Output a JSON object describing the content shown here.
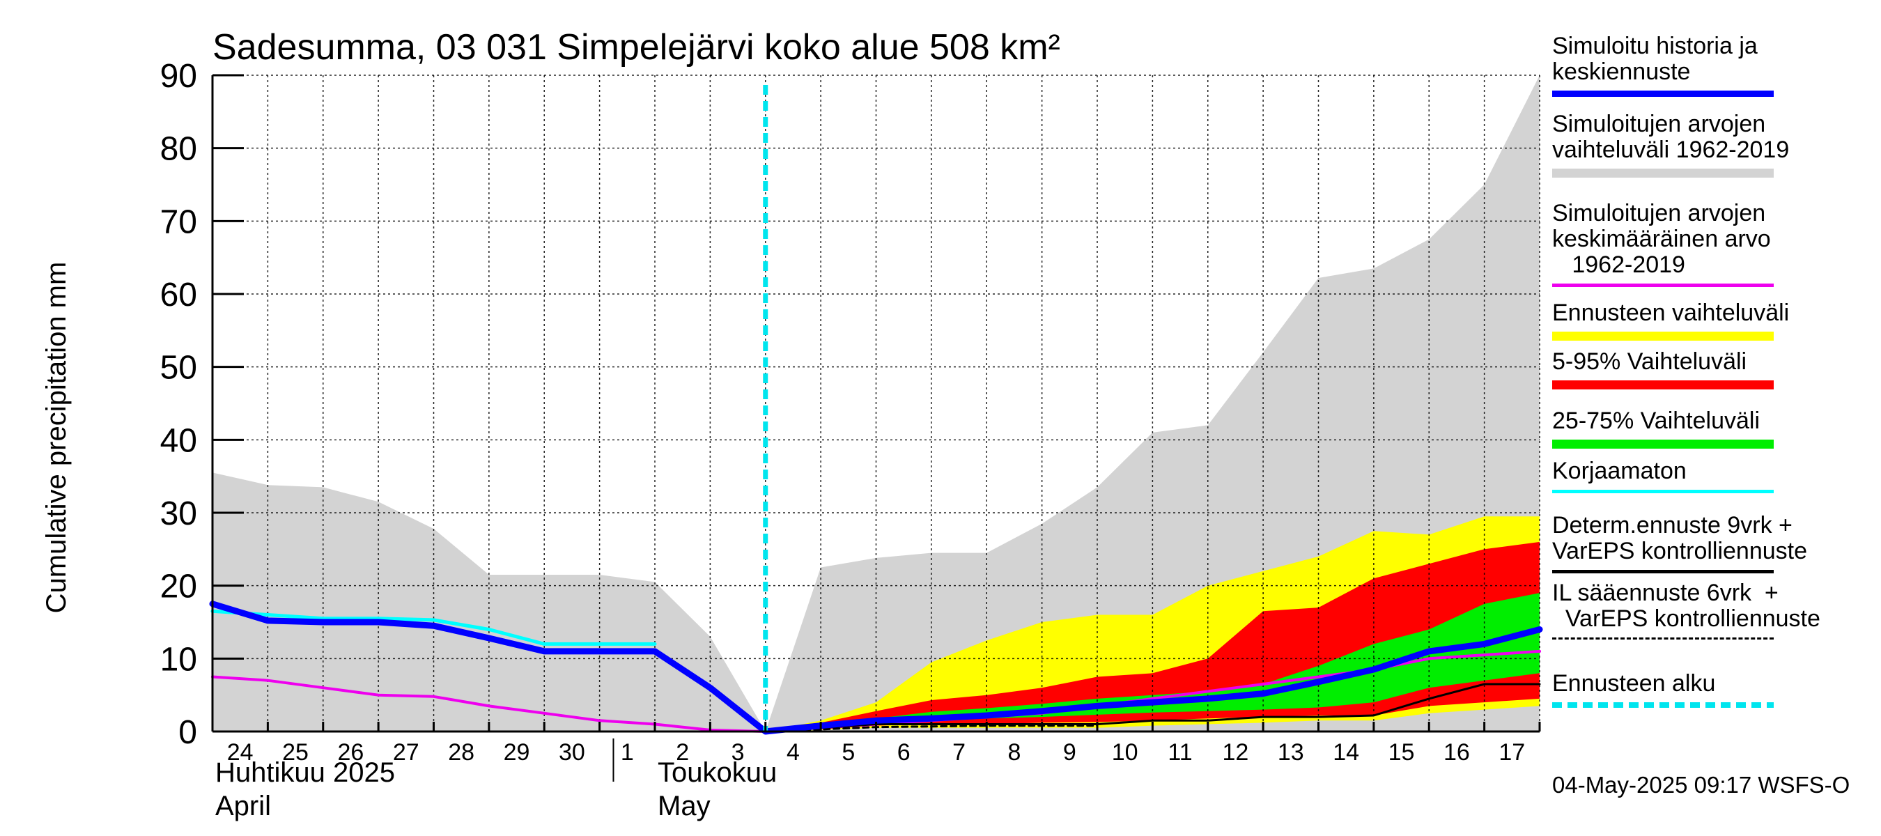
{
  "chart_data": {
    "type": "area",
    "title": "Sadesumma, 03 031 Simpelejärvi koko alue 508 km²",
    "ylabel": "Cumulative precipitation   mm",
    "ylim": [
      0,
      90
    ],
    "yticks": [
      0,
      10,
      20,
      30,
      40,
      50,
      60,
      70,
      80,
      90
    ],
    "grid": true,
    "day_labels": [
      "24",
      "25",
      "26",
      "27",
      "28",
      "29",
      "30",
      "1",
      "2",
      "3",
      "4",
      "5",
      "6",
      "7",
      "8",
      "9",
      "10",
      "11",
      "12",
      "13",
      "14",
      "15",
      "16",
      "17"
    ],
    "month_labels": [
      {
        "fi": "Huhtikuu  2025",
        "en": "April",
        "day_index": 0
      },
      {
        "fi": "Toukokuu",
        "en": "May",
        "day_index": 8
      }
    ],
    "forecast_start_day": 10,
    "history_range": {
      "x": [
        0,
        1,
        2,
        3,
        4,
        5,
        6,
        7,
        8,
        9,
        10,
        11,
        12,
        13,
        14,
        15,
        16,
        17,
        18,
        19,
        20,
        21,
        22,
        23,
        24
      ],
      "high": [
        35.5,
        33.8,
        33.5,
        31.5,
        27.8,
        21.5,
        21.5,
        21.5,
        20.5,
        13.0,
        0,
        22.5,
        23.8,
        24.5,
        24.5,
        28.5,
        33.5,
        41.0,
        42.0,
        52.0,
        62.2,
        63.5,
        67.5,
        75.0,
        90.0
      ],
      "low": [
        0,
        0,
        0,
        0,
        0,
        0,
        0,
        0,
        0,
        0,
        0,
        0,
        0,
        0,
        0,
        0,
        0,
        0,
        0,
        0,
        0,
        0,
        0,
        0,
        0
      ]
    },
    "forecast_bands": [
      {
        "name": "Ennusteen vaihteluväli",
        "color": "#ffff00",
        "x": [
          10,
          11,
          12,
          13,
          14,
          15,
          16,
          17,
          18,
          19,
          20,
          21,
          22,
          23,
          24
        ],
        "high": [
          0,
          1.5,
          4.0,
          9.5,
          12.5,
          15.0,
          16.0,
          16.0,
          20.0,
          22.0,
          24.0,
          27.5,
          27.0,
          29.5,
          29.5
        ],
        "low": [
          0,
          0.2,
          0.5,
          0.5,
          0.5,
          0.5,
          0.5,
          0.8,
          1.0,
          1.2,
          1.5,
          1.5,
          2.5,
          3.0,
          3.5
        ]
      },
      {
        "name": "5-95% Vaihteluväli",
        "color": "#ff0000",
        "x": [
          10,
          11,
          12,
          13,
          14,
          15,
          16,
          17,
          18,
          19,
          20,
          21,
          22,
          23,
          24
        ],
        "high": [
          0,
          1.2,
          2.8,
          4.3,
          5.0,
          6.0,
          7.5,
          8.0,
          10.0,
          16.5,
          17.0,
          21.0,
          23.0,
          25.0,
          26.0
        ],
        "low": [
          0,
          0.3,
          0.8,
          1.0,
          1.0,
          1.2,
          1.3,
          1.5,
          1.8,
          2.0,
          2.2,
          2.2,
          3.5,
          4.0,
          4.5
        ]
      },
      {
        "name": "25-75% Vaihteluväli",
        "color": "#00ee00",
        "x": [
          10,
          11,
          12,
          13,
          14,
          15,
          16,
          17,
          18,
          19,
          20,
          21,
          22,
          23,
          24
        ],
        "high": [
          0,
          0.8,
          1.8,
          2.7,
          3.2,
          3.8,
          4.5,
          5.0,
          5.5,
          6.5,
          9.0,
          12.0,
          14.0,
          17.5,
          19.0
        ],
        "low": [
          0,
          0.5,
          1.2,
          1.5,
          1.8,
          2.0,
          2.3,
          2.6,
          2.8,
          3.0,
          3.3,
          4.0,
          6.0,
          7.0,
          8.0
        ]
      }
    ],
    "series": [
      {
        "name": "Simuloitu historia ja keskiennuste",
        "color": "#0000ff",
        "x": [
          0,
          1,
          2,
          3,
          4,
          5,
          6,
          7,
          8,
          9,
          10,
          11,
          12,
          13,
          14,
          15,
          16,
          17,
          18,
          19,
          20,
          21,
          22,
          23,
          24
        ],
        "values": [
          17.5,
          15.2,
          15.0,
          15.0,
          14.5,
          12.8,
          11.0,
          11.0,
          11.0,
          6.0,
          0,
          0.8,
          1.5,
          1.8,
          2.2,
          2.8,
          3.5,
          4.0,
          4.5,
          5.2,
          6.8,
          8.5,
          11.0,
          12.0,
          14.0
        ]
      },
      {
        "name": "Korjaamaton",
        "color": "#00ffff",
        "x": [
          0,
          1,
          2,
          3,
          4,
          5,
          6,
          7,
          8
        ],
        "values": [
          16.5,
          16.0,
          15.5,
          15.5,
          15.3,
          14.0,
          12.0,
          12.0,
          12.0
        ]
      },
      {
        "name": "Simuloitujen arvojen keskimääräinen arvo 1962-2019",
        "color": "#ee00ee",
        "x": [
          0,
          1,
          2,
          3,
          4,
          5,
          6,
          7,
          8,
          9,
          10,
          11,
          12,
          13,
          14,
          15,
          16,
          17,
          18,
          19,
          20,
          21,
          22,
          23,
          24
        ],
        "values": [
          7.5,
          7.0,
          6.0,
          5.0,
          4.8,
          3.5,
          2.5,
          1.5,
          1.0,
          0.2,
          0,
          0.5,
          1.0,
          1.5,
          2.0,
          2.5,
          3.5,
          4.5,
          5.5,
          6.5,
          7.5,
          8.5,
          10.0,
          10.5,
          11.0
        ]
      },
      {
        "name": "Determ.ennuste 9vrk + VarEPS kontrolliennuste",
        "color": "#000000",
        "x": [
          10,
          11,
          12,
          13,
          14,
          15,
          16,
          17,
          18,
          19,
          20,
          21,
          22,
          23,
          24
        ],
        "values": [
          0,
          0.5,
          1.0,
          1.0,
          1.0,
          1.0,
          1.0,
          1.5,
          1.5,
          2.0,
          2.0,
          2.2,
          4.5,
          6.5,
          6.5
        ]
      },
      {
        "name": "IL sääennuste 6vrk + VarEPS kontrolliennuste",
        "color": "#000000",
        "x": [
          10,
          11,
          12,
          13,
          14,
          15,
          16
        ],
        "values": [
          0,
          0.3,
          0.6,
          0.7,
          0.8,
          0.8,
          0.8
        ]
      }
    ],
    "legend": {
      "placement": "right",
      "items": [
        {
          "label": "Simuloitu historia ja\nkeskiennuste",
          "color": "#0000ff",
          "style": "line-thick"
        },
        {
          "label": "Simuloitujen arvojen\nvaihteluväli 1962-2019",
          "color": "#d3d3d3",
          "style": "band"
        },
        {
          "label": "Simuloitujen arvojen\nkeskimääräinen arvo\n   1962-2019",
          "color": "#ee00ee",
          "style": "line"
        },
        {
          "label": "Ennusteen vaihteluväli",
          "color": "#ffff00",
          "style": "band"
        },
        {
          "label": "5-95% Vaihteluväli",
          "color": "#ff0000",
          "style": "band"
        },
        {
          "label": "25-75% Vaihteluväli",
          "color": "#00ee00",
          "style": "band"
        },
        {
          "label": "Korjaamaton",
          "color": "#00ffff",
          "style": "line"
        },
        {
          "label": "Determ.ennuste 9vrk +\nVarEPS kontrolliennuste",
          "color": "#000000",
          "style": "line"
        },
        {
          "label": "IL sääennuste 6vrk  +\n  VarEPS kontrolliennuste",
          "color": "#000000",
          "style": "dashed"
        },
        {
          "label": "Ennusteen alku",
          "color": "#00e5ee",
          "style": "dotted-thick"
        }
      ]
    },
    "footer": "04-May-2025 09:17 WSFS-O"
  }
}
